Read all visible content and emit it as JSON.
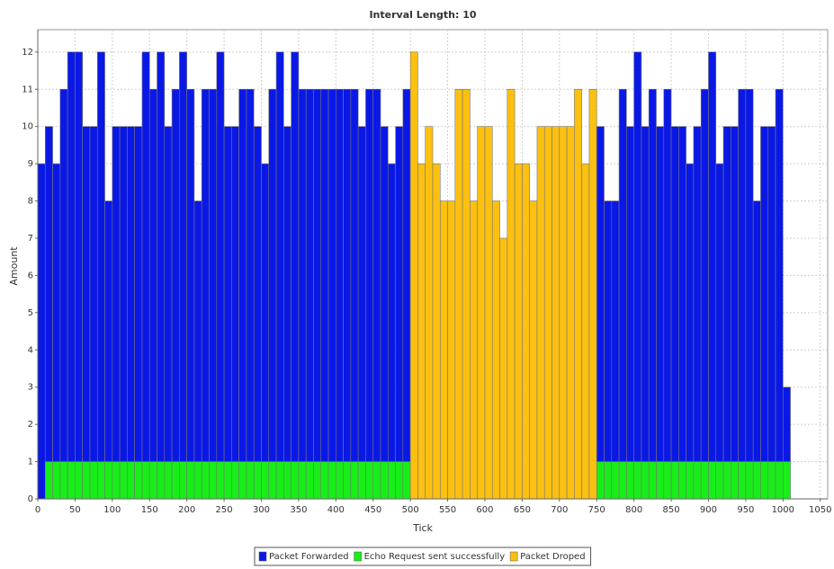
{
  "chart_data": {
    "type": "stacked-histogram",
    "title": "Interval Length: 10",
    "xlabel": "Tick",
    "ylabel": "Amount",
    "bins": [
      0,
      10,
      20,
      30,
      40,
      50,
      60,
      70,
      80,
      90,
      100,
      110,
      120,
      130,
      140,
      150,
      160,
      170,
      180,
      190,
      200,
      210,
      220,
      230,
      240,
      250,
      260,
      270,
      280,
      290,
      300,
      310,
      320,
      330,
      340,
      350,
      360,
      370,
      380,
      390,
      400,
      410,
      420,
      430,
      440,
      450,
      460,
      470,
      480,
      490,
      500,
      510,
      520,
      530,
      540,
      550,
      560,
      570,
      580,
      590,
      600,
      610,
      620,
      630,
      640,
      650,
      660,
      670,
      680,
      690,
      700,
      710,
      720,
      730,
      740,
      750,
      760,
      770,
      780,
      790,
      800,
      810,
      820,
      830,
      840,
      850,
      860,
      870,
      880,
      890,
      900,
      910,
      920,
      930,
      940,
      950,
      960,
      970,
      980,
      990,
      1000,
      1010
    ],
    "series": [
      {
        "name": "Packet Forwarded",
        "color": "#0a18e6",
        "values": [
          9,
          9,
          8,
          10,
          11,
          11,
          9,
          9,
          11,
          7,
          9,
          9,
          9,
          9,
          11,
          10,
          11,
          9,
          10,
          11,
          10,
          7,
          10,
          10,
          11,
          9,
          9,
          10,
          10,
          9,
          8,
          10,
          11,
          9,
          11,
          10,
          10,
          10,
          10,
          10,
          10,
          10,
          10,
          9,
          10,
          10,
          9,
          8,
          9,
          10,
          null,
          null,
          null,
          null,
          null,
          null,
          null,
          null,
          null,
          null,
          null,
          null,
          null,
          null,
          null,
          null,
          null,
          null,
          null,
          null,
          null,
          null,
          null,
          null,
          null,
          9,
          7,
          7,
          10,
          9,
          11,
          9,
          10,
          9,
          10,
          9,
          9,
          8,
          9,
          10,
          11,
          8,
          9,
          9,
          10,
          10,
          7,
          9,
          9,
          10,
          2
        ]
      },
      {
        "name": "Echo Request sent successfully",
        "color": "#18ee18",
        "values": [
          null,
          1,
          1,
          1,
          1,
          1,
          1,
          1,
          1,
          1,
          1,
          1,
          1,
          1,
          1,
          1,
          1,
          1,
          1,
          1,
          1,
          1,
          1,
          1,
          1,
          1,
          1,
          1,
          1,
          1,
          1,
          1,
          1,
          1,
          1,
          1,
          1,
          1,
          1,
          1,
          1,
          1,
          1,
          1,
          1,
          1,
          1,
          1,
          1,
          1,
          null,
          null,
          null,
          null,
          null,
          null,
          null,
          null,
          null,
          null,
          null,
          null,
          null,
          null,
          null,
          null,
          null,
          null,
          null,
          null,
          null,
          null,
          null,
          null,
          null,
          1,
          1,
          1,
          1,
          1,
          1,
          1,
          1,
          1,
          1,
          1,
          1,
          1,
          1,
          1,
          1,
          1,
          1,
          1,
          1,
          1,
          1,
          1,
          1,
          1,
          1
        ]
      },
      {
        "name": "Packet Droped",
        "color": "#fcc010",
        "values": [
          null,
          null,
          null,
          null,
          null,
          null,
          null,
          null,
          null,
          null,
          null,
          null,
          null,
          null,
          null,
          null,
          null,
          null,
          null,
          null,
          null,
          null,
          null,
          null,
          null,
          null,
          null,
          null,
          null,
          null,
          null,
          null,
          null,
          null,
          null,
          null,
          null,
          null,
          null,
          null,
          null,
          null,
          null,
          null,
          null,
          null,
          null,
          null,
          null,
          null,
          12,
          9,
          10,
          9,
          8,
          8,
          11,
          11,
          8,
          10,
          10,
          8,
          7,
          11,
          9,
          9,
          8,
          10,
          10,
          10,
          10,
          10,
          11,
          9,
          11,
          null,
          null,
          null,
          null,
          null,
          null,
          null,
          null,
          null,
          null,
          null,
          null,
          null,
          null,
          null,
          null,
          null,
          null,
          null,
          null,
          null,
          null,
          null,
          null,
          null,
          null
        ]
      }
    ],
    "xlim": [
      0,
      1060
    ],
    "xticks": [
      0,
      50,
      100,
      150,
      200,
      250,
      300,
      350,
      400,
      450,
      500,
      550,
      600,
      650,
      700,
      750,
      800,
      850,
      900,
      950,
      1000,
      1050
    ],
    "ylim": [
      0,
      12.6
    ],
    "yticks": [
      0,
      1,
      2,
      3,
      4,
      5,
      6,
      7,
      8,
      9,
      10,
      11,
      12
    ],
    "grid": true,
    "legend": "bottom"
  }
}
